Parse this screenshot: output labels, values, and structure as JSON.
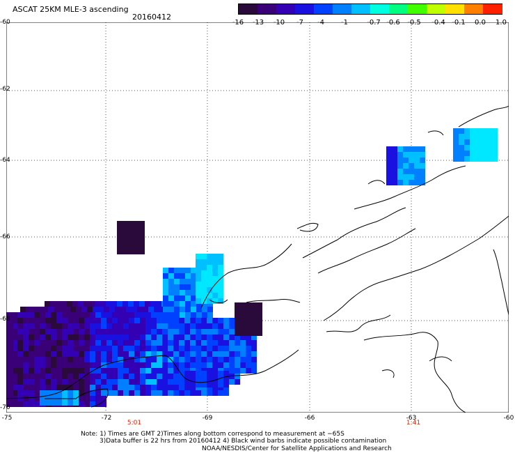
{
  "header": {
    "title": "ASCAT 25KM MLE-3 ascending",
    "date": "20160412"
  },
  "colorbar": {
    "labels": [
      "-16",
      "-13",
      "-10",
      "-7",
      "-4",
      "-1",
      "-0.7",
      "-0.6",
      "-0.5",
      "-0.4",
      "-0.1",
      "0.0",
      "1.0"
    ],
    "colors": [
      "#2a0a3a",
      "#3a0078",
      "#3300b4",
      "#1a10e0",
      "#0040ff",
      "#0080ff",
      "#00c0ff",
      "#00ffe0",
      "#00ff80",
      "#40ff00",
      "#c0ff00",
      "#ffe000",
      "#ff8000",
      "#ff2000"
    ]
  },
  "map": {
    "lat_labels": [
      "-60",
      "-62",
      "-64",
      "-66",
      "-68",
      "-70"
    ],
    "lon_labels": [
      "-75",
      "-72",
      "-69",
      "-66",
      "-63",
      "-60"
    ],
    "time_labels": [
      "5:01",
      "1:41"
    ]
  },
  "notes": {
    "line1": "Note: 1) Times are GMT 2)Times along bottom correspond to measurement at −65S",
    "line2": "3)Data buffer is 22 hrs from 20160412 4) Black wind barbs indicate possible contamination",
    "line3": "NOAA/NESDIS/Center for Satellite Applications and Research"
  },
  "colors": {
    "grid": "#555555",
    "coast": "#000000",
    "time_label": "#cc2200"
  }
}
